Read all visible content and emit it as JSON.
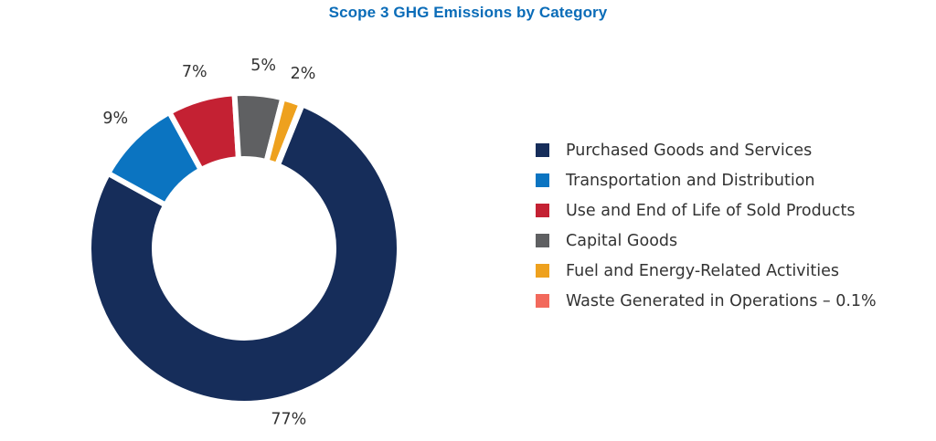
{
  "chart_data": {
    "type": "pie",
    "variant": "donut",
    "title": "Scope 3 GHG Emissions by Category",
    "start_angle_deg": 22,
    "direction": "clockwise",
    "legend_position": "right",
    "slices": [
      {
        "label": "Purchased Goods and Services",
        "value": 77,
        "display_pct": "77%",
        "color": "#162d5a"
      },
      {
        "label": "Transportation and Distribution",
        "value": 9,
        "display_pct": "9%",
        "color": "#0b74c1"
      },
      {
        "label": "Use and End of Life of Sold Products",
        "value": 7,
        "display_pct": "7%",
        "color": "#c42133"
      },
      {
        "label": "Capital Goods",
        "value": 5,
        "display_pct": "5%",
        "color": "#5f6062"
      },
      {
        "label": "Fuel and Energy-Related Activities",
        "value": 2,
        "display_pct": "2%",
        "color": "#eea11e"
      },
      {
        "label": "Waste Generated in Operations – 0.1%",
        "value": 0.1,
        "display_pct": "",
        "color": "#f2695c"
      }
    ]
  }
}
